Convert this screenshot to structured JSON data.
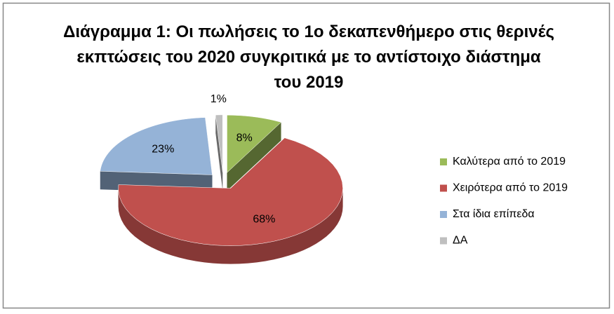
{
  "chart_data": {
    "type": "pie",
    "title": "Διάγραμμα 1: Οι πωλήσεις το 1ο δεκαπενθήμερο στις θερινές εκπτώσεις του 2020 συγκριτικά με το αντίστοιχο διάστημα του 2019",
    "categories": [
      "Καλύτερα από το 2019",
      "Χειρότερα από το 2019",
      "Στα ίδια επίπεδα",
      "ΔΑ"
    ],
    "values": [
      8,
      68,
      23,
      1
    ],
    "value_labels": [
      "8%",
      "68%",
      "23%",
      "1%"
    ],
    "colors": [
      "#9bbb59",
      "#c0504d",
      "#95b3d7",
      "#bfbfbf"
    ],
    "legend": "right"
  }
}
